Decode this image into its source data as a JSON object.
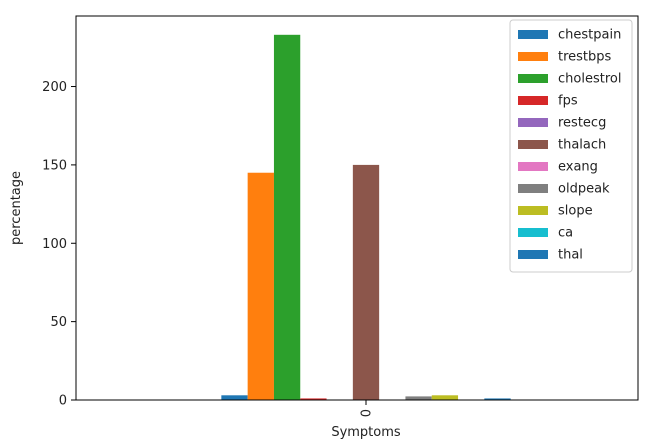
{
  "chart_data": {
    "type": "bar",
    "categories": [
      "0"
    ],
    "xlabel": "Symptoms",
    "ylabel": "percentage",
    "ylim": [
      0,
      245
    ],
    "yticks": [
      0,
      50,
      100,
      150,
      200
    ],
    "grid": false,
    "legend_position": "top-right",
    "series": [
      {
        "name": "chestpain",
        "values": [
          3
        ],
        "color": "#1f77b4"
      },
      {
        "name": "trestbps",
        "values": [
          145
        ],
        "color": "#ff7f0e"
      },
      {
        "name": "cholestrol",
        "values": [
          233
        ],
        "color": "#2ca02c"
      },
      {
        "name": "fps",
        "values": [
          1
        ],
        "color": "#d62728"
      },
      {
        "name": "restecg",
        "values": [
          0
        ],
        "color": "#9467bd"
      },
      {
        "name": "thalach",
        "values": [
          150
        ],
        "color": "#8c564b"
      },
      {
        "name": "exang",
        "values": [
          0
        ],
        "color": "#e377c2"
      },
      {
        "name": "oldpeak",
        "values": [
          2.3
        ],
        "color": "#7f7f7f"
      },
      {
        "name": "slope",
        "values": [
          3
        ],
        "color": "#bcbd22"
      },
      {
        "name": "ca",
        "values": [
          0
        ],
        "color": "#17becf"
      },
      {
        "name": "thal",
        "values": [
          1
        ],
        "color": "#1f77b4"
      }
    ]
  }
}
